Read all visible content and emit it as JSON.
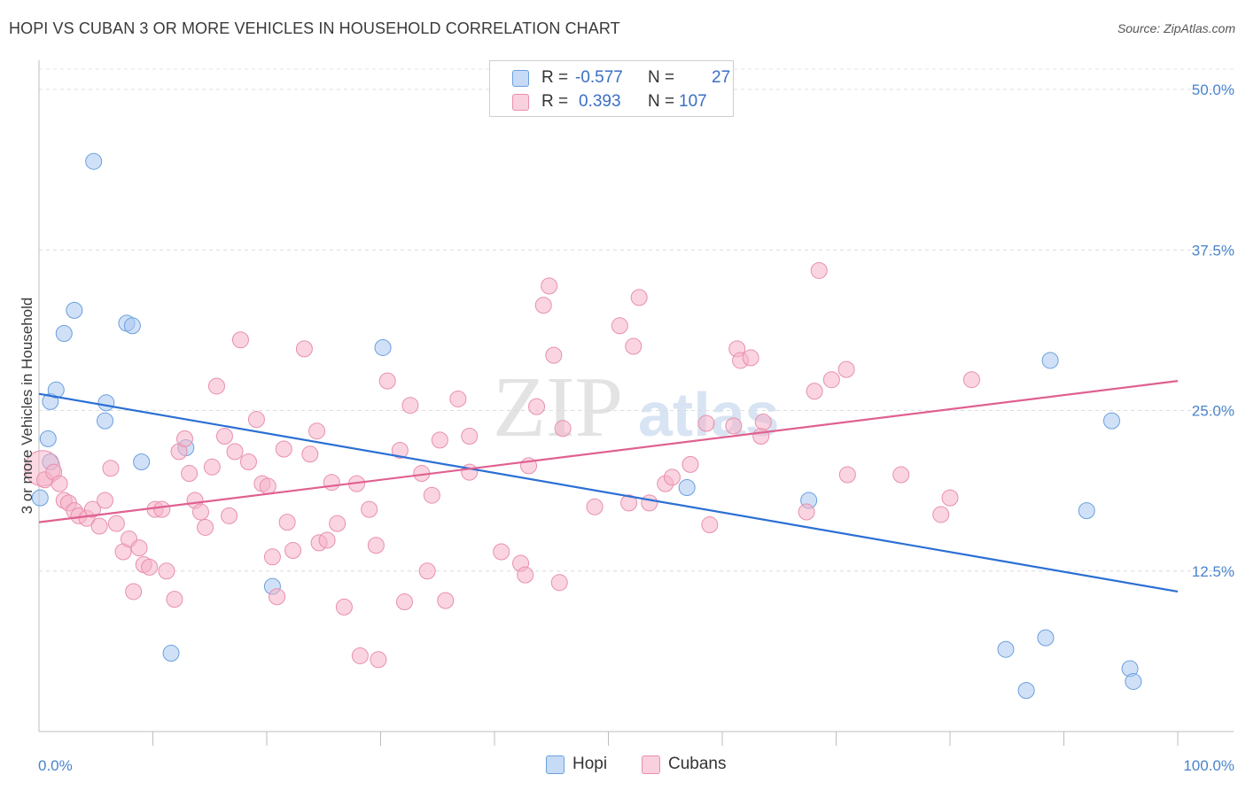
{
  "header": {
    "title": "HOPI VS CUBAN 3 OR MORE VEHICLES IN HOUSEHOLD CORRELATION CHART",
    "source": "Source: ZipAtlas.com"
  },
  "watermark": {
    "zip": "ZIP",
    "atlas": "atlas"
  },
  "legend": {
    "rows": [
      {
        "r_label": "R =",
        "r_value": "-0.577",
        "n_label": "N =",
        "n_value": "27",
        "color": "#a9c8f0"
      },
      {
        "r_label": "R =",
        "r_value": "0.393",
        "n_label": "N =",
        "n_value": "107",
        "color": "#f5b3c8"
      }
    ]
  },
  "bottom_legend": [
    {
      "label": "Hopi",
      "color": "#a9c8f0"
    },
    {
      "label": "Cubans",
      "color": "#f5b3c8"
    }
  ],
  "chart_data": {
    "type": "scatter",
    "title": "HOPI VS CUBAN 3 OR MORE VEHICLES IN HOUSEHOLD CORRELATION CHART",
    "xlabel": "",
    "ylabel": "3 or more Vehicles in Household",
    "xlim": [
      0,
      100
    ],
    "ylim": [
      0,
      52
    ],
    "x_tick_labels": {
      "min": "0.0%",
      "max": "100.0%"
    },
    "y_ticks": [
      {
        "value": 12.5,
        "label": "12.5%"
      },
      {
        "value": 25.0,
        "label": "25.0%"
      },
      {
        "value": 37.5,
        "label": "37.5%"
      },
      {
        "value": 50.0,
        "label": "50.0%"
      }
    ],
    "series": [
      {
        "name": "Hopi",
        "color": "#a9c8f0",
        "stroke": "#6a9fde",
        "line_color": "#2b6fd4",
        "trend": {
          "x0": 0,
          "y0": 26.3,
          "x1": 100,
          "y1": 10.9
        },
        "points": [
          [
            0.1,
            18.2
          ],
          [
            0.8,
            22.8
          ],
          [
            1.0,
            25.7
          ],
          [
            1.5,
            26.6
          ],
          [
            2.2,
            31.0
          ],
          [
            1.0,
            21.0
          ],
          [
            3.1,
            32.8
          ],
          [
            4.8,
            44.4
          ],
          [
            5.8,
            24.2
          ],
          [
            5.9,
            25.6
          ],
          [
            7.7,
            31.8
          ],
          [
            8.2,
            31.6
          ],
          [
            9.0,
            21.0
          ],
          [
            12.9,
            22.1
          ],
          [
            11.6,
            6.1
          ],
          [
            20.5,
            11.3
          ],
          [
            30.2,
            29.9
          ],
          [
            56.9,
            19.0
          ],
          [
            67.6,
            18.0
          ],
          [
            84.9,
            6.4
          ],
          [
            86.7,
            3.2
          ],
          [
            88.4,
            7.3
          ],
          [
            88.8,
            28.9
          ],
          [
            92.0,
            17.2
          ],
          [
            94.2,
            24.2
          ],
          [
            95.8,
            4.9
          ],
          [
            96.1,
            3.9
          ]
        ]
      },
      {
        "name": "Cubans",
        "color": "#f5b3c8",
        "stroke": "#e88fae",
        "line_color": "#e06090",
        "trend": {
          "x0": 0,
          "y0": 16.3,
          "x1": 100,
          "y1": 27.3
        },
        "points": [
          [
            0.3,
            20.5
          ],
          [
            0.5,
            19.6
          ],
          [
            1.3,
            20.2
          ],
          [
            1.8,
            19.3
          ],
          [
            2.2,
            18.0
          ],
          [
            2.6,
            17.8
          ],
          [
            3.1,
            17.2
          ],
          [
            3.5,
            16.8
          ],
          [
            4.2,
            16.6
          ],
          [
            4.7,
            17.3
          ],
          [
            5.3,
            16.0
          ],
          [
            5.8,
            18.0
          ],
          [
            6.3,
            20.5
          ],
          [
            6.8,
            16.2
          ],
          [
            7.4,
            14.0
          ],
          [
            7.9,
            15.0
          ],
          [
            8.3,
            10.9
          ],
          [
            8.8,
            14.3
          ],
          [
            9.2,
            13.0
          ],
          [
            9.7,
            12.8
          ],
          [
            10.2,
            17.3
          ],
          [
            10.8,
            17.3
          ],
          [
            11.2,
            12.5
          ],
          [
            11.9,
            10.3
          ],
          [
            12.3,
            21.8
          ],
          [
            12.8,
            22.8
          ],
          [
            13.2,
            20.1
          ],
          [
            13.7,
            18.0
          ],
          [
            14.2,
            17.1
          ],
          [
            14.6,
            15.9
          ],
          [
            15.2,
            20.6
          ],
          [
            15.6,
            26.9
          ],
          [
            16.3,
            23.0
          ],
          [
            16.7,
            16.8
          ],
          [
            17.2,
            21.8
          ],
          [
            17.7,
            30.5
          ],
          [
            18.4,
            21.0
          ],
          [
            19.1,
            24.3
          ],
          [
            19.6,
            19.3
          ],
          [
            20.1,
            19.1
          ],
          [
            20.5,
            13.6
          ],
          [
            20.9,
            10.5
          ],
          [
            21.5,
            22.0
          ],
          [
            21.8,
            16.3
          ],
          [
            22.3,
            14.1
          ],
          [
            23.3,
            29.8
          ],
          [
            23.8,
            21.6
          ],
          [
            24.4,
            23.4
          ],
          [
            24.6,
            14.7
          ],
          [
            25.3,
            14.9
          ],
          [
            25.7,
            19.4
          ],
          [
            26.2,
            16.2
          ],
          [
            26.8,
            9.7
          ],
          [
            27.9,
            19.3
          ],
          [
            28.2,
            5.9
          ],
          [
            29.0,
            17.3
          ],
          [
            29.6,
            14.5
          ],
          [
            29.8,
            5.6
          ],
          [
            30.6,
            27.3
          ],
          [
            31.7,
            21.9
          ],
          [
            32.1,
            10.1
          ],
          [
            32.6,
            25.4
          ],
          [
            33.6,
            20.1
          ],
          [
            34.1,
            12.5
          ],
          [
            34.5,
            18.4
          ],
          [
            35.2,
            22.7
          ],
          [
            35.7,
            10.2
          ],
          [
            36.8,
            25.9
          ],
          [
            37.8,
            23.0
          ],
          [
            37.8,
            20.2
          ],
          [
            40.6,
            14.0
          ],
          [
            42.3,
            13.1
          ],
          [
            42.7,
            12.2
          ],
          [
            43.0,
            20.7
          ],
          [
            43.7,
            25.3
          ],
          [
            44.3,
            33.2
          ],
          [
            44.8,
            34.7
          ],
          [
            45.2,
            29.3
          ],
          [
            45.7,
            11.6
          ],
          [
            46.0,
            23.6
          ],
          [
            48.8,
            17.5
          ],
          [
            51.0,
            31.6
          ],
          [
            51.8,
            17.8
          ],
          [
            52.2,
            30.0
          ],
          [
            52.7,
            33.8
          ],
          [
            53.6,
            17.8
          ],
          [
            55.0,
            19.3
          ],
          [
            55.6,
            19.8
          ],
          [
            57.2,
            20.8
          ],
          [
            58.6,
            24.0
          ],
          [
            58.9,
            16.1
          ],
          [
            61.0,
            23.8
          ],
          [
            61.3,
            29.8
          ],
          [
            61.6,
            28.9
          ],
          [
            62.5,
            29.1
          ],
          [
            63.4,
            23.0
          ],
          [
            63.6,
            24.1
          ],
          [
            67.4,
            17.1
          ],
          [
            68.1,
            26.5
          ],
          [
            68.5,
            35.9
          ],
          [
            69.6,
            27.4
          ],
          [
            70.9,
            28.2
          ],
          [
            71.0,
            20.0
          ],
          [
            75.7,
            20.0
          ],
          [
            79.2,
            16.9
          ],
          [
            80.0,
            18.2
          ],
          [
            81.9,
            27.4
          ]
        ]
      }
    ]
  }
}
